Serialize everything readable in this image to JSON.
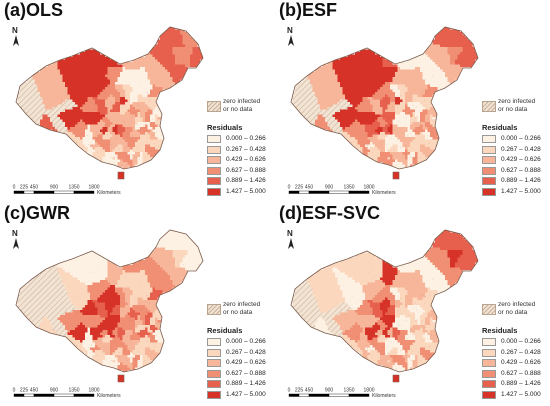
{
  "panels": [
    {
      "id": "ols",
      "title": "(a)OLS",
      "profile": "ols"
    },
    {
      "id": "esf",
      "title": "(b)ESF",
      "profile": "esf"
    },
    {
      "id": "gwr",
      "title": "(c)GWR",
      "profile": "gwr"
    },
    {
      "id": "esf-svc",
      "title": "(d)ESF-SVC",
      "profile": "svc"
    }
  ],
  "north_label": "N",
  "legend": {
    "zero_label_line1": "zero infected",
    "zero_label_line2": "or no data",
    "title": "Residuals",
    "classes": [
      {
        "label": "0.000 – 0.266",
        "color": "#fdf1e4"
      },
      {
        "label": "0.267 – 0.428",
        "color": "#fad7bd"
      },
      {
        "label": "0.429 – 0.626",
        "color": "#f7b699"
      },
      {
        "label": "0.627 – 0.888",
        "color": "#f08f74"
      },
      {
        "label": "0.889 – 1.426",
        "color": "#e6604d"
      },
      {
        "label": "1.427 – 5.000",
        "color": "#d63228"
      }
    ],
    "zero_color": "#f3e3d3",
    "hatch_color": "#c7b29d"
  },
  "scale_bar": {
    "ticks": [
      "0",
      "225",
      "450",
      "900",
      "1350",
      "1800"
    ],
    "unit": "Kilometers"
  }
}
